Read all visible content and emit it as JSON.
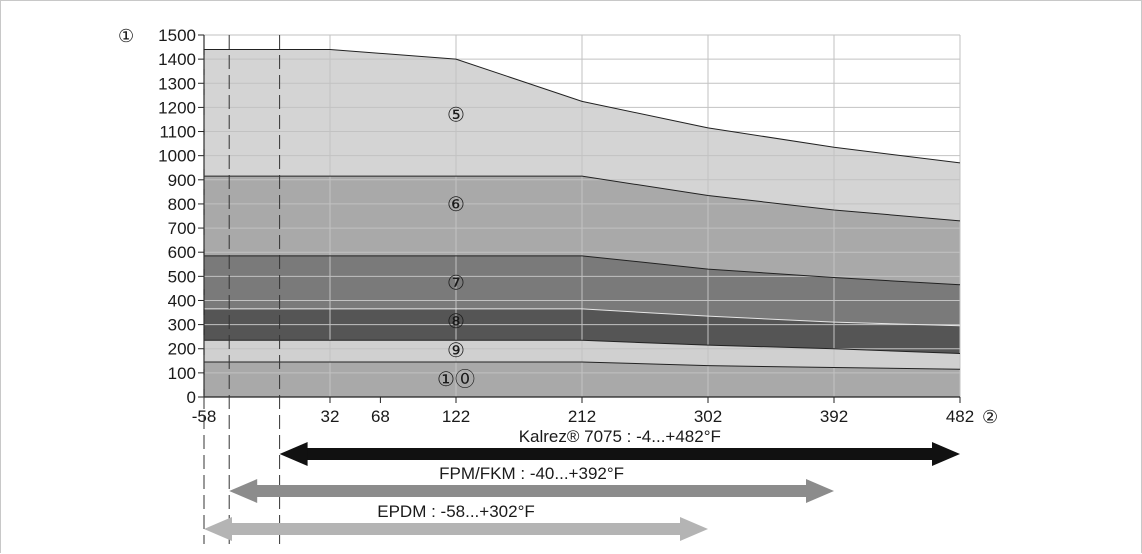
{
  "chart_data": {
    "type": "area",
    "y_axis_marker": "①",
    "x_axis_marker": "②",
    "y_ticks": [
      0,
      100,
      200,
      300,
      400,
      500,
      600,
      700,
      800,
      900,
      1000,
      1100,
      1200,
      1300,
      1400,
      1500
    ],
    "y_tick_labels": [
      "0",
      "100",
      "200",
      "300",
      "400",
      "500",
      "600",
      "700",
      "800",
      "900",
      "1000",
      "1100",
      "1200",
      "1300",
      "1400",
      "1500"
    ],
    "ylim": [
      0,
      1500
    ],
    "xlim": [
      -58,
      482
    ],
    "x_ticks": [
      -58,
      32,
      68,
      122,
      212,
      302,
      392,
      482
    ],
    "x_tick_labels": [
      "-58",
      "32",
      "68",
      "122",
      "212",
      "302",
      "392",
      "482"
    ],
    "grid_x": [
      32,
      122,
      212,
      302,
      392,
      482
    ],
    "dashed_x": [
      -58,
      -40,
      -4
    ],
    "series": [
      {
        "name": "⑤",
        "label_at": [
          122,
          1170
        ],
        "fill": "#d4d4d4",
        "x": [
          -58,
          32,
          122,
          212,
          302,
          392,
          482
        ],
        "values": [
          1440,
          1440,
          1400,
          1225,
          1115,
          1035,
          970
        ]
      },
      {
        "name": "⑥",
        "label_at": [
          122,
          800
        ],
        "fill": "#a9a9a9",
        "x": [
          -58,
          32,
          122,
          212,
          302,
          392,
          482
        ],
        "values": [
          915,
          915,
          915,
          915,
          835,
          775,
          730
        ]
      },
      {
        "name": "⑦",
        "label_at": [
          122,
          475
        ],
        "fill": "#7a7a7a",
        "x": [
          -58,
          32,
          122,
          212,
          302,
          392,
          482
        ],
        "values": [
          585,
          585,
          585,
          585,
          530,
          495,
          465
        ]
      },
      {
        "name": "⑧",
        "label_at": [
          122,
          315
        ],
        "fill": "#555555",
        "x": [
          -58,
          32,
          122,
          212,
          302,
          392,
          482
        ],
        "values": [
          365,
          365,
          365,
          365,
          335,
          310,
          295
        ]
      },
      {
        "name": "⑨",
        "label_at": [
          122,
          195
        ],
        "fill": "#d0d0d0",
        "x": [
          -58,
          32,
          122,
          212,
          302,
          392,
          482
        ],
        "values": [
          235,
          235,
          235,
          235,
          215,
          200,
          180
        ]
      },
      {
        "name": "①⓪",
        "label_at": [
          122,
          75
        ],
        "fill": "#a9a9a9",
        "x": [
          -58,
          32,
          122,
          212,
          302,
          392,
          482
        ],
        "values": [
          145,
          145,
          145,
          145,
          130,
          122,
          115
        ]
      }
    ],
    "ranges": [
      {
        "label": "Kalrez® 7075 : -4...+482°F",
        "from": -4,
        "to": 482,
        "color": "#111111",
        "row": 0
      },
      {
        "label": "FPM/FKM : -40...+392°F",
        "from": -40,
        "to": 392,
        "color": "#8c8c8c",
        "row": 1
      },
      {
        "label": "EPDM : -58...+302°F",
        "from": -58,
        "to": 302,
        "color": "#b4b4b4",
        "row": 2
      }
    ]
  }
}
